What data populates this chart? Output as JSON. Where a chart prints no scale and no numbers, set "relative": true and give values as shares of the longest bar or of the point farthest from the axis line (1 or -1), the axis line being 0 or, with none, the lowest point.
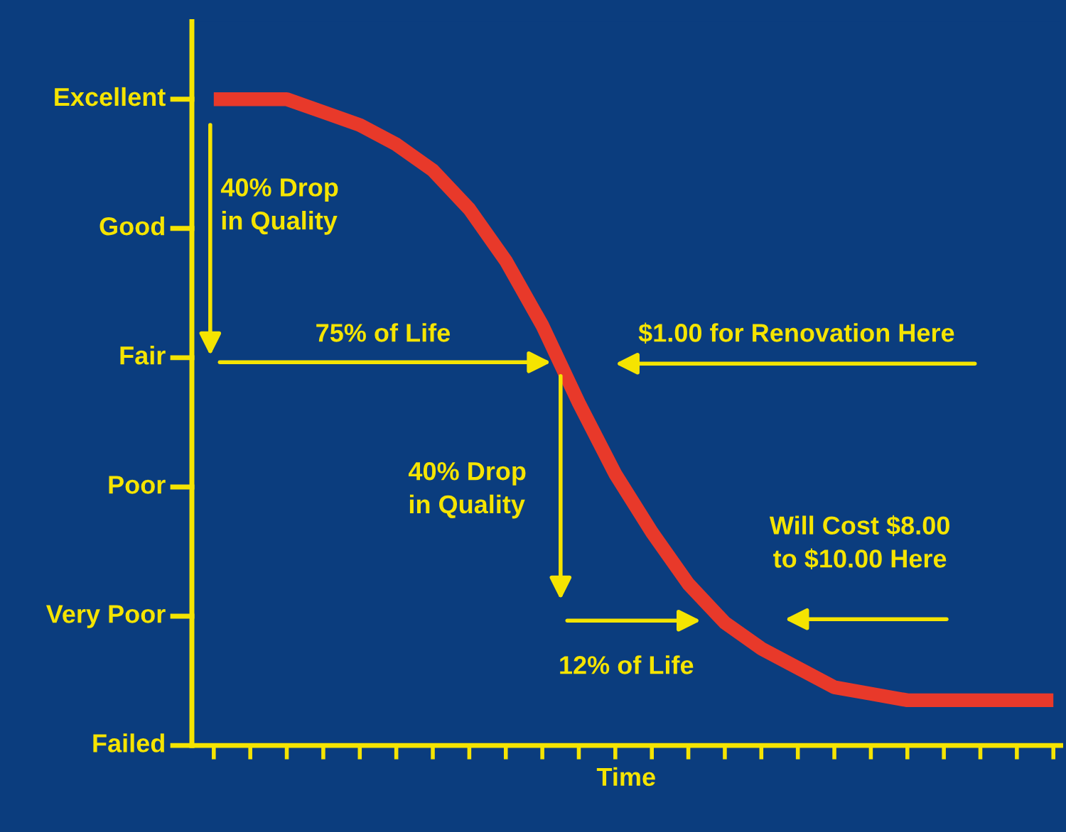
{
  "chart_data": {
    "type": "line",
    "xlabel": "Time",
    "categories": [
      null,
      null,
      null,
      null,
      null,
      null,
      null,
      null,
      null,
      null,
      null,
      null,
      null,
      null,
      null,
      null,
      null,
      null,
      null,
      null,
      null,
      null,
      null,
      null
    ],
    "series": [
      {
        "color": "#e8392a",
        "values": [
          1.0,
          1.0,
          1.0,
          0.98,
          0.96,
          0.93,
          0.89,
          0.83,
          0.75,
          0.65,
          0.53,
          0.42,
          0.33,
          0.25,
          0.19,
          0.15,
          0.12,
          0.09,
          0.08,
          0.07,
          0.07,
          0.07,
          0.07,
          0.07
        ]
      }
    ],
    "relative": true,
    "tick_labels": false,
    "grid": false,
    "legend": false,
    "marker": "none",
    "line_style": "solid",
    "annotations": [
      "Excellent",
      "Good",
      "Fair",
      "Poor",
      "Very Poor",
      "Failed",
      "40% Drop\nin Quality",
      "75% of Life",
      "$1.00 for Renovation Here",
      "40% Drop\nin Quality",
      "Will Cost $8.00\nto $10.00 Here",
      "12% of Life"
    ]
  }
}
